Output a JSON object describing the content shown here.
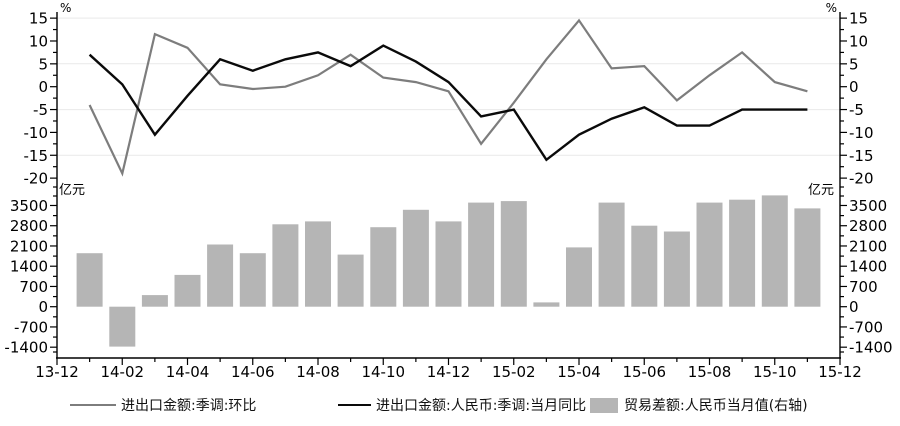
{
  "chart_data": {
    "type": "combo",
    "title": "",
    "x_months": [
      "14-01",
      "14-02",
      "14-03",
      "14-04",
      "14-05",
      "14-06",
      "14-07",
      "14-08",
      "14-09",
      "14-10",
      "14-11",
      "14-12",
      "15-01",
      "15-02",
      "15-03",
      "15-04",
      "15-05",
      "15-06",
      "15-07",
      "15-08",
      "15-09",
      "15-10",
      "15-11"
    ],
    "x_axis_tick_labels": [
      "13-12",
      "14-02",
      "14-04",
      "14-06",
      "14-08",
      "14-10",
      "14-12",
      "15-02",
      "15-04",
      "15-06",
      "15-08",
      "15-10",
      "15-12"
    ],
    "series": [
      {
        "name": "进出口金额:季调:环比",
        "type": "line",
        "axis": "percent-top",
        "color": "#7d7d7d",
        "values": [
          -4,
          -19,
          11.5,
          8.5,
          0.5,
          -0.5,
          0,
          2.5,
          7,
          2,
          1,
          -1,
          -12.5,
          -3.5,
          6,
          14.5,
          4,
          4.5,
          -3,
          2.5,
          7.5,
          1,
          -1
        ]
      },
      {
        "name": "进出口金额:人民币:季调:当月同比",
        "type": "line",
        "axis": "percent-top",
        "color": "#0a0a0a",
        "values": [
          7,
          0.5,
          -10.5,
          -2,
          6,
          3.5,
          6,
          7.5,
          4.5,
          9,
          5.5,
          1,
          -6.5,
          -5,
          -16,
          -10.5,
          -7,
          -4.5,
          -8.5,
          -8.5,
          -5,
          -5,
          -5
        ]
      },
      {
        "name": "贸易差额:人民币当月值(右轴)",
        "type": "bar",
        "axis": "cny-bottom",
        "color": "#b5b5b5",
        "values": [
          1850,
          -1380,
          400,
          1100,
          2150,
          1850,
          2850,
          2950,
          1800,
          2750,
          3350,
          2950,
          3600,
          3650,
          150,
          2050,
          3600,
          2800,
          2600,
          3600,
          3700,
          3850,
          3400
        ]
      }
    ],
    "top_axis": {
      "unit": "%",
      "ticks": [
        15,
        10,
        5,
        0,
        -5,
        -10,
        -15,
        -20
      ],
      "range": [
        -20,
        15
      ],
      "gridlines": [
        15,
        5,
        -5,
        -15
      ],
      "sides": "both"
    },
    "bottom_axis": {
      "unit": "亿元",
      "ticks": [
        3500,
        2800,
        2100,
        1400,
        700,
        0,
        -700,
        -1400
      ],
      "range": [
        -1400,
        3500
      ],
      "gridlines": [],
      "sides": "both"
    },
    "legend_position": "bottom",
    "gridline_color": "#e9e9e9",
    "axis_color": "#000000"
  }
}
